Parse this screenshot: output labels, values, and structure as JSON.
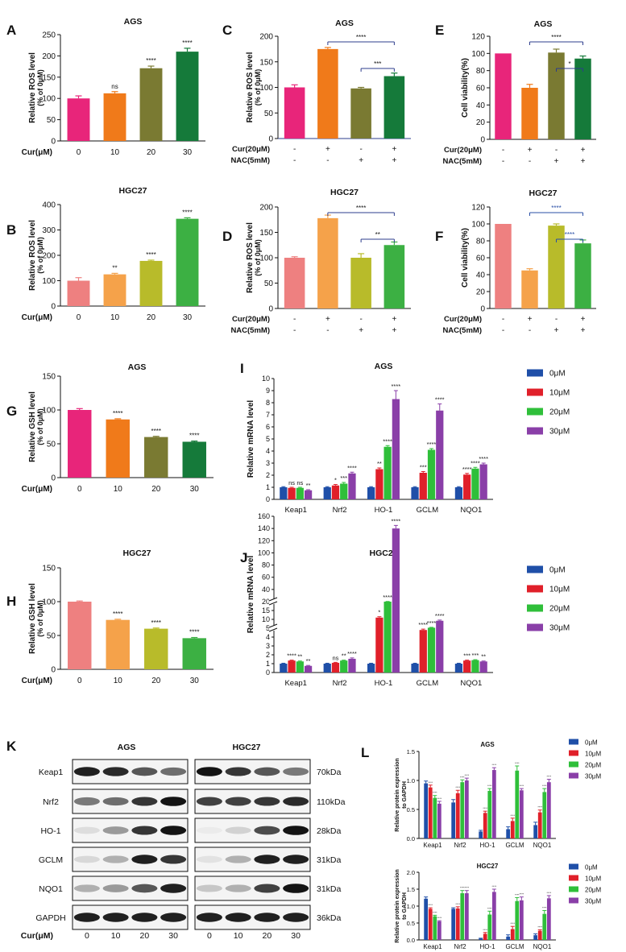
{
  "colors": {
    "pink": "#e8257a",
    "orange": "#f07a1a",
    "olive": "#7a7a32",
    "green": "#157a3a",
    "salmon": "#ee8080",
    "lorange": "#f5a24a",
    "lime": "#b8bb2a",
    "lgreen": "#3cb043",
    "blue": "#1f4fa8",
    "red": "#e0202a",
    "mgreen": "#2fbf3a",
    "purple": "#8a3fa8",
    "sigblue": "#2a4fa6",
    "bracket": "#2c3c8c"
  },
  "legend4": [
    "0μM",
    "10μM",
    "20μM",
    "30μM"
  ],
  "western": {
    "letter": "K",
    "groups": [
      "AGS",
      "HGC27"
    ],
    "rows": [
      {
        "protein": "Keap1",
        "kda": "70kDa",
        "ags": [
          0.95,
          0.9,
          0.7,
          0.6
        ],
        "hgc": [
          1.0,
          0.85,
          0.7,
          0.55
        ]
      },
      {
        "protein": "Nrf2",
        "kda": "110kDa",
        "ags": [
          0.55,
          0.6,
          0.85,
          1.0
        ],
        "hgc": [
          0.8,
          0.8,
          0.85,
          0.9
        ]
      },
      {
        "protein": "HO-1",
        "kda": "28kDa",
        "ags": [
          0.1,
          0.4,
          0.85,
          1.0
        ],
        "hgc": [
          0.03,
          0.15,
          0.75,
          1.0
        ]
      },
      {
        "protein": "GCLM",
        "kda": "31kDa",
        "ags": [
          0.12,
          0.3,
          0.95,
          0.85
        ],
        "hgc": [
          0.08,
          0.3,
          0.95,
          0.95
        ]
      },
      {
        "protein": "NQO1",
        "kda": "31kDa",
        "ags": [
          0.3,
          0.4,
          0.7,
          0.95
        ],
        "hgc": [
          0.2,
          0.3,
          0.8,
          1.0
        ]
      },
      {
        "protein": "GAPDH",
        "kda": "36kDa",
        "ags": [
          0.95,
          0.95,
          0.95,
          0.95
        ],
        "hgc": [
          0.95,
          0.95,
          0.95,
          0.95
        ]
      }
    ],
    "dose_label": "Cur(μM)",
    "doses": [
      "0",
      "10",
      "20",
      "30"
    ]
  },
  "chart_data": [
    {
      "id": "A",
      "type": "bar",
      "title": "AGS",
      "ylabel": [
        "Relative ROS level",
        "(% of 0μM)"
      ],
      "ylim": [
        0,
        250
      ],
      "yticks": [
        0,
        50,
        100,
        150,
        200,
        250
      ],
      "xlabel": "Cur(μM)",
      "categories": [
        "0",
        "10",
        "20",
        "30"
      ],
      "values": [
        100,
        112,
        171,
        210
      ],
      "errors": [
        6,
        4,
        5,
        8
      ],
      "sig": [
        "",
        "ns",
        "****",
        "****"
      ],
      "colors": [
        "pink",
        "orange",
        "olive",
        "green"
      ]
    },
    {
      "id": "B",
      "type": "bar",
      "title": "HGC27",
      "ylabel": [
        "Relative ROS level",
        "(% of 0μM)"
      ],
      "ylim": [
        0,
        400
      ],
      "yticks": [
        0,
        100,
        200,
        300,
        400
      ],
      "xlabel": "Cur(μM)",
      "categories": [
        "0",
        "10",
        "20",
        "30"
      ],
      "values": [
        100,
        125,
        178,
        344
      ],
      "errors": [
        12,
        4,
        3,
        4
      ],
      "sig": [
        "",
        "**",
        "****",
        "****"
      ],
      "colors": [
        "salmon",
        "lorange",
        "lime",
        "lgreen"
      ]
    },
    {
      "id": "C",
      "type": "bar",
      "title": "AGS",
      "ylabel": [
        "Relative ROS level",
        "(% of 0μM)"
      ],
      "ylim": [
        0,
        200
      ],
      "yticks": [
        0,
        50,
        100,
        150,
        200
      ],
      "xrows": [
        {
          "label": "Cur(20μM)",
          "marks": [
            "-",
            "+",
            "-",
            "+"
          ]
        },
        {
          "label": "NAC(5mM)",
          "marks": [
            "-",
            "-",
            "+",
            "+"
          ]
        }
      ],
      "values": [
        100,
        175,
        98,
        122
      ],
      "errors": [
        5,
        3,
        2,
        6
      ],
      "colors": [
        "pink",
        "orange",
        "olive",
        "green"
      ],
      "brackets": [
        {
          "from": 1,
          "to": 3,
          "label": "****",
          "level": 0
        },
        {
          "from": 2,
          "to": 3,
          "label": "***",
          "level": 1
        }
      ]
    },
    {
      "id": "D",
      "type": "bar",
      "title": "HGC27",
      "ylabel": [
        "Relative ROS level",
        "(% of 0μM)"
      ],
      "ylim": [
        0,
        200
      ],
      "yticks": [
        0,
        50,
        100,
        150,
        200
      ],
      "xrows": [
        {
          "label": "Cur(20μM)",
          "marks": [
            "-",
            "+",
            "-",
            "+"
          ]
        },
        {
          "label": "NAC(5mM)",
          "marks": [
            "-",
            "-",
            "+",
            "+"
          ]
        }
      ],
      "values": [
        100,
        178,
        100,
        125
      ],
      "errors": [
        2,
        6,
        8,
        6
      ],
      "colors": [
        "salmon",
        "lorange",
        "lime",
        "lgreen"
      ],
      "brackets": [
        {
          "from": 1,
          "to": 3,
          "label": "****",
          "level": 0
        },
        {
          "from": 2,
          "to": 3,
          "label": "**",
          "level": 1
        }
      ]
    },
    {
      "id": "E",
      "type": "bar",
      "title": "AGS",
      "ylabel": [
        "Cell viability(%)"
      ],
      "ylim": [
        0,
        120
      ],
      "yticks": [
        0,
        20,
        40,
        60,
        80,
        100,
        120
      ],
      "xrows": [
        {
          "label": "Cur(20μM)",
          "marks": [
            "-",
            "+",
            "-",
            "+"
          ]
        },
        {
          "label": "NAC(5mM)",
          "marks": [
            "-",
            "-",
            "+",
            "+"
          ]
        }
      ],
      "values": [
        100,
        60,
        101,
        94
      ],
      "errors": [
        0,
        4,
        4,
        3
      ],
      "colors": [
        "pink",
        "orange",
        "olive",
        "green"
      ],
      "brackets": [
        {
          "from": 1,
          "to": 3,
          "label": "****",
          "level": 0
        },
        {
          "from": 2,
          "to": 3,
          "label": "*",
          "level": 1
        }
      ]
    },
    {
      "id": "F",
      "type": "bar",
      "title": "HGC27",
      "ylabel": [
        "Cell viability(%)"
      ],
      "ylim": [
        0,
        120
      ],
      "yticks": [
        0,
        20,
        40,
        60,
        80,
        100,
        120
      ],
      "xrows": [
        {
          "label": "Cur(20μM)",
          "marks": [
            "-",
            "+",
            "-",
            "+"
          ]
        },
        {
          "label": "NAC(5mM)",
          "marks": [
            "-",
            "-",
            "+",
            "+"
          ]
        }
      ],
      "values": [
        100,
        45,
        98,
        77
      ],
      "errors": [
        0,
        2,
        2,
        4
      ],
      "colors": [
        "salmon",
        "lorange",
        "lime",
        "lgreen"
      ],
      "brackets": [
        {
          "from": 1,
          "to": 3,
          "label": "****",
          "level": 0,
          "blue": true
        },
        {
          "from": 2,
          "to": 3,
          "label": "****",
          "level": 1,
          "blue": true
        }
      ]
    },
    {
      "id": "G",
      "type": "bar",
      "title": "AGS",
      "ylabel": [
        "Relative GSH level",
        "(% of 0μM)"
      ],
      "ylim": [
        0,
        150
      ],
      "yticks": [
        0,
        50,
        100,
        150
      ],
      "xlabel": "Cur(μM)",
      "categories": [
        "0",
        "10",
        "20",
        "30"
      ],
      "values": [
        100,
        86,
        60,
        53
      ],
      "errors": [
        2,
        1,
        1,
        1
      ],
      "sig": [
        "",
        "****",
        "****",
        "****"
      ],
      "colors": [
        "pink",
        "orange",
        "olive",
        "green"
      ]
    },
    {
      "id": "H",
      "type": "bar",
      "title": "HGC27",
      "ylabel": [
        "Relative GSH level",
        "(% of 0μM)"
      ],
      "ylim": [
        0,
        150
      ],
      "yticks": [
        0,
        50,
        100,
        150
      ],
      "xlabel": "Cur(μM)",
      "categories": [
        "0",
        "10",
        "20",
        "30"
      ],
      "values": [
        100,
        73,
        60,
        46
      ],
      "errors": [
        1,
        1,
        1,
        1
      ],
      "sig": [
        "",
        "****",
        "****",
        "****"
      ],
      "colors": [
        "salmon",
        "lorange",
        "lime",
        "lgreen"
      ]
    },
    {
      "id": "I",
      "type": "bar",
      "title": "AGS",
      "ylabel": [
        "Relative mRNA level"
      ],
      "ylim": [
        0,
        10
      ],
      "yticks": [
        0,
        1,
        2,
        3,
        4,
        5,
        6,
        7,
        8,
        9,
        10
      ],
      "categories": [
        "Keap1",
        "Nrf2",
        "HO-1",
        "GCLM",
        "NQO1"
      ],
      "series": [
        {
          "name": "0μM",
          "values": [
            1,
            1,
            1,
            1,
            1
          ],
          "errors": [
            0.05,
            0.05,
            0.05,
            0.05,
            0.05
          ],
          "sig": [
            "",
            "",
            "",
            "",
            ""
          ]
        },
        {
          "name": "10μM",
          "values": [
            0.95,
            1.15,
            2.5,
            2.2,
            2.05
          ],
          "errors": [
            0.05,
            0.08,
            0.1,
            0.1,
            0.1
          ],
          "sig": [
            "ns",
            "*",
            "**",
            "***",
            "****"
          ]
        },
        {
          "name": "20μM",
          "values": [
            0.95,
            1.3,
            4.35,
            4.1,
            2.55
          ],
          "errors": [
            0.05,
            0.1,
            0.1,
            0.1,
            0.1
          ],
          "sig": [
            "ns",
            "***",
            "****",
            "****",
            "****"
          ]
        },
        {
          "name": "30μM",
          "values": [
            0.75,
            2.15,
            8.3,
            7.35,
            2.9
          ],
          "errors": [
            0.05,
            0.1,
            0.7,
            0.55,
            0.1
          ],
          "sig": [
            "**",
            "****",
            "****",
            "****",
            "****"
          ]
        }
      ]
    },
    {
      "id": "J",
      "type": "bar",
      "title": "HGC27",
      "ylabel": [
        "Relative mRNA level"
      ],
      "broken_axis": true,
      "yticks": [
        0,
        1,
        2,
        3,
        4,
        5,
        10,
        15,
        20,
        40,
        60,
        80,
        100,
        120,
        140,
        160
      ],
      "categories": [
        "Keap1",
        "Nrf2",
        "HO-1",
        "GCLM",
        "NQO1"
      ],
      "series": [
        {
          "name": "0μM",
          "values": [
            1,
            1,
            1,
            1,
            1
          ],
          "errors": [
            0.05,
            0.05,
            0.05,
            0.05,
            0.05
          ],
          "sig": [
            "",
            "",
            "",
            "",
            ""
          ]
        },
        {
          "name": "10μM",
          "values": [
            1.35,
            1.1,
            11,
            4.8,
            1.35
          ],
          "errors": [
            0.05,
            0.05,
            0.5,
            0.1,
            0.05
          ],
          "sig": [
            "****",
            "ns",
            "*",
            "****",
            "***"
          ]
        },
        {
          "name": "20μM",
          "values": [
            1.25,
            1.35,
            20,
            5.3,
            1.4
          ],
          "errors": [
            0.05,
            0.05,
            0.3,
            0.2,
            0.05
          ],
          "sig": [
            "**",
            "**",
            "****",
            "****",
            "***"
          ]
        },
        {
          "name": "30μM",
          "values": [
            0.75,
            1.55,
            140,
            9.2,
            1.25
          ],
          "errors": [
            0.05,
            0.1,
            5,
            0.4,
            0.05
          ],
          "sig": [
            "**",
            "****",
            "****",
            "****",
            "**"
          ]
        }
      ]
    },
    {
      "id": "L1",
      "type": "bar",
      "title": "AGS",
      "ylabel": [
        "Relative protein expression",
        "to GAPDH"
      ],
      "ylim": [
        0,
        1.5
      ],
      "yticks": [
        "0.0",
        "0.5",
        "1.0",
        "1.5"
      ],
      "categories": [
        "Keap1",
        "Nrf2",
        "HO-1",
        "GCLM",
        "NQO1"
      ],
      "series": [
        {
          "name": "0μM",
          "values": [
            0.95,
            0.62,
            0.12,
            0.16,
            0.23
          ],
          "errors": [
            0.04,
            0.05,
            0.02,
            0.04,
            0.05
          ]
        },
        {
          "name": "10μM",
          "values": [
            0.88,
            0.78,
            0.44,
            0.3,
            0.45
          ],
          "errors": [
            0.04,
            0.05,
            0.03,
            0.05,
            0.04
          ]
        },
        {
          "name": "20μM",
          "values": [
            0.7,
            0.97,
            0.82,
            1.17,
            0.8
          ],
          "errors": [
            0.04,
            0.04,
            0.04,
            0.08,
            0.06
          ]
        },
        {
          "name": "30μM",
          "values": [
            0.6,
            1.0,
            1.18,
            0.83,
            0.97
          ],
          "errors": [
            0.04,
            0.04,
            0.04,
            0.03,
            0.05
          ]
        }
      ]
    },
    {
      "id": "L2",
      "type": "bar",
      "title": "HGC27",
      "ylabel": [
        "Relative protein expression",
        "to GAPDH"
      ],
      "ylim": [
        0,
        2.0
      ],
      "yticks": [
        "0.0",
        "0.5",
        "1.0",
        "1.5",
        "2.0"
      ],
      "categories": [
        "Keap1",
        "Nrf2",
        "HO-1",
        "GCLM",
        "NQO1"
      ],
      "series": [
        {
          "name": "0μM",
          "values": [
            1.22,
            0.92,
            0.04,
            0.1,
            0.14
          ],
          "errors": [
            0.05,
            0.03,
            0.01,
            0.05,
            0.04
          ]
        },
        {
          "name": "10μM",
          "values": [
            0.92,
            0.93,
            0.18,
            0.32,
            0.27
          ],
          "errors": [
            0.03,
            0.05,
            0.04,
            0.08,
            0.03
          ]
        },
        {
          "name": "20μM",
          "values": [
            0.7,
            1.38,
            0.75,
            1.15,
            0.77
          ],
          "errors": [
            0.03,
            0.08,
            0.1,
            0.1,
            0.1
          ]
        },
        {
          "name": "30μM",
          "values": [
            0.55,
            1.38,
            1.42,
            1.17,
            1.23
          ],
          "errors": [
            0.02,
            0.08,
            0.08,
            0.1,
            0.08
          ]
        }
      ]
    }
  ]
}
